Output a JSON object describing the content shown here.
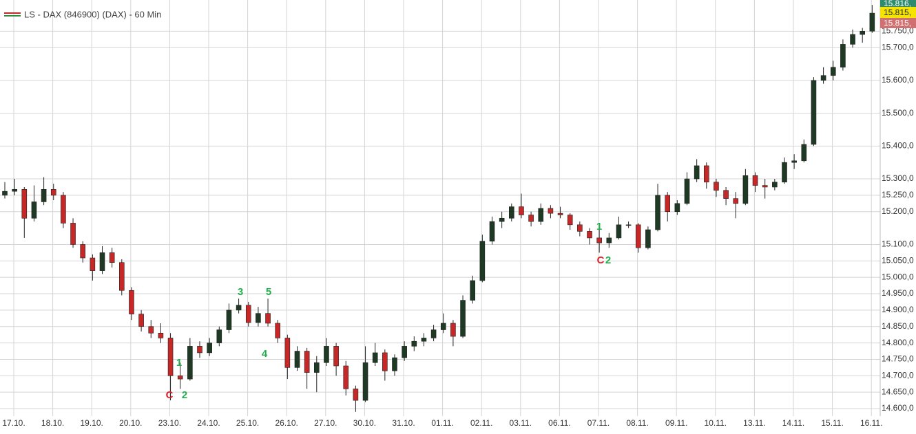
{
  "chart_data": {
    "type": "candlestick",
    "title": "LS - DAX (846900) (DAX) - 60 Min",
    "up_color": "#1e3a24",
    "down_color": "#c62828",
    "grid": true,
    "ylim": [
      14577,
      15845
    ],
    "yticks": [
      {
        "value": 15750,
        "label": "15.750,0"
      },
      {
        "value": 15700,
        "label": "15.700,0"
      },
      {
        "value": 15600,
        "label": "15.600,0"
      },
      {
        "value": 15500,
        "label": "15.500,0"
      },
      {
        "value": 15400,
        "label": "15.400,0"
      },
      {
        "value": 15300,
        "label": "15.300,0"
      },
      {
        "value": 15250,
        "label": "15.250,0"
      },
      {
        "value": 15200,
        "label": "15.200,0"
      },
      {
        "value": 15100,
        "label": "15.100,0"
      },
      {
        "value": 15050,
        "label": "15.050,0"
      },
      {
        "value": 15000,
        "label": "15.000,0"
      },
      {
        "value": 14950,
        "label": "14.950,0"
      },
      {
        "value": 14900,
        "label": "14.900,0"
      },
      {
        "value": 14850,
        "label": "14.850,0"
      },
      {
        "value": 14800,
        "label": "14.800,0"
      },
      {
        "value": 14750,
        "label": "14.750,0"
      },
      {
        "value": 14700,
        "label": "14.700,0"
      },
      {
        "value": 14650,
        "label": "14.650,0"
      },
      {
        "value": 14600,
        "label": "14.600,0"
      }
    ],
    "categories": [
      "17.10.",
      "18.10.",
      "19.10.",
      "20.10.",
      "23.10.",
      "24.10.",
      "25.10.",
      "26.10.",
      "27.10.",
      "30.10.",
      "31.10.",
      "01.11.",
      "02.11.",
      "03.11.",
      "06.11.",
      "07.11.",
      "08.11.",
      "09.11.",
      "10.11.",
      "13.11.",
      "14.11.",
      "15.11.",
      "16.11."
    ],
    "price_labels": [
      {
        "text": "15.816,",
        "color": "#2e8b6e"
      },
      {
        "text": "15.815,",
        "color": "#f5e400"
      },
      {
        "text": "15.815,",
        "color": "#d07070"
      }
    ],
    "annotations": [
      {
        "text": "1",
        "color": "#22b04a"
      },
      {
        "text": "2",
        "color": "#22b04a"
      },
      {
        "text": "C",
        "color": "#e0202a"
      },
      {
        "text": "3",
        "color": "#22b04a"
      },
      {
        "text": "4",
        "color": "#22b04a"
      },
      {
        "text": "5",
        "color": "#22b04a"
      },
      {
        "text": "1",
        "color": "#22b04a"
      },
      {
        "text": "C",
        "color": "#e0202a"
      },
      {
        "text": "2",
        "color": "#22b04a"
      }
    ],
    "candles": [
      [
        15250,
        15290,
        15240,
        15262
      ],
      [
        15262,
        15300,
        15250,
        15268
      ],
      [
        15268,
        15275,
        15120,
        15180
      ],
      [
        15180,
        15280,
        15170,
        15230
      ],
      [
        15230,
        15305,
        15220,
        15268
      ],
      [
        15268,
        15285,
        15235,
        15250
      ],
      [
        15250,
        15260,
        15150,
        15165
      ],
      [
        15165,
        15180,
        15090,
        15100
      ],
      [
        15100,
        15110,
        15045,
        15059
      ],
      [
        15059,
        15070,
        14990,
        15020
      ],
      [
        15020,
        15095,
        15010,
        15075
      ],
      [
        15075,
        15090,
        15030,
        15045
      ],
      [
        15045,
        15055,
        14945,
        14960
      ],
      [
        14960,
        14970,
        14870,
        14888
      ],
      [
        14888,
        14900,
        14835,
        14850
      ],
      [
        14850,
        14870,
        14815,
        14830
      ],
      [
        14830,
        14860,
        14800,
        14815
      ],
      [
        14815,
        14830,
        14625,
        14700
      ],
      [
        14700,
        14740,
        14660,
        14690
      ],
      [
        14690,
        14815,
        14685,
        14790
      ],
      [
        14790,
        14805,
        14755,
        14770
      ],
      [
        14770,
        14815,
        14760,
        14800
      ],
      [
        14800,
        14850,
        14790,
        14840
      ],
      [
        14840,
        14920,
        14830,
        14900
      ],
      [
        14900,
        14935,
        14890,
        14915
      ],
      [
        14915,
        14925,
        14850,
        14862
      ],
      [
        14862,
        14910,
        14850,
        14890
      ],
      [
        14890,
        14935,
        14850,
        14860
      ],
      [
        14860,
        14870,
        14800,
        14815
      ],
      [
        14815,
        14825,
        14690,
        14725
      ],
      [
        14725,
        14790,
        14715,
        14775
      ],
      [
        14775,
        14785,
        14660,
        14710
      ],
      [
        14710,
        14760,
        14650,
        14740
      ],
      [
        14740,
        14815,
        14730,
        14790
      ],
      [
        14790,
        14800,
        14700,
        14730
      ],
      [
        14730,
        14745,
        14640,
        14660
      ],
      [
        14660,
        14670,
        14590,
        14625
      ],
      [
        14625,
        14790,
        14620,
        14740
      ],
      [
        14740,
        14800,
        14730,
        14770
      ],
      [
        14770,
        14780,
        14685,
        14715
      ],
      [
        14715,
        14765,
        14700,
        14755
      ],
      [
        14755,
        14805,
        14745,
        14790
      ],
      [
        14790,
        14820,
        14775,
        14805
      ],
      [
        14805,
        14830,
        14790,
        14815
      ],
      [
        14815,
        14855,
        14805,
        14840
      ],
      [
        14840,
        14890,
        14830,
        14860
      ],
      [
        14860,
        14870,
        14790,
        14820
      ],
      [
        14820,
        14945,
        14815,
        14930
      ],
      [
        14930,
        15005,
        14920,
        14990
      ],
      [
        14990,
        15130,
        14985,
        15110
      ],
      [
        15110,
        15185,
        15100,
        15170
      ],
      [
        15170,
        15200,
        15150,
        15180
      ],
      [
        15180,
        15225,
        15170,
        15215
      ],
      [
        15215,
        15255,
        15180,
        15190
      ],
      [
        15190,
        15200,
        15155,
        15170
      ],
      [
        15170,
        15225,
        15160,
        15210
      ],
      [
        15210,
        15220,
        15180,
        15195
      ],
      [
        15195,
        15215,
        15180,
        15190
      ],
      [
        15190,
        15195,
        15145,
        15160
      ],
      [
        15160,
        15170,
        15125,
        15140
      ],
      [
        15140,
        15150,
        15100,
        15120
      ],
      [
        15120,
        15150,
        15075,
        15105
      ],
      [
        15105,
        15135,
        15090,
        15120
      ],
      [
        15120,
        15185,
        15115,
        15160
      ],
      [
        15160,
        15170,
        15150,
        15160
      ],
      [
        15160,
        15165,
        15075,
        15090
      ],
      [
        15090,
        15155,
        15085,
        15145
      ],
      [
        15145,
        15285,
        15140,
        15250
      ],
      [
        15250,
        15260,
        15170,
        15200
      ],
      [
        15200,
        15235,
        15190,
        15225
      ],
      [
        15225,
        15320,
        15220,
        15300
      ],
      [
        15300,
        15360,
        15290,
        15340
      ],
      [
        15340,
        15350,
        15270,
        15290
      ],
      [
        15290,
        15300,
        15245,
        15265
      ],
      [
        15265,
        15275,
        15220,
        15240
      ],
      [
        15240,
        15260,
        15180,
        15225
      ],
      [
        15225,
        15330,
        15220,
        15310
      ],
      [
        15310,
        15320,
        15260,
        15280
      ],
      [
        15280,
        15300,
        15240,
        15275
      ],
      [
        15275,
        15300,
        15265,
        15290
      ],
      [
        15290,
        15365,
        15285,
        15350
      ],
      [
        15350,
        15375,
        15330,
        15355
      ],
      [
        15355,
        15420,
        15350,
        15405
      ],
      [
        15405,
        15610,
        15400,
        15600
      ],
      [
        15600,
        15640,
        15590,
        15615
      ],
      [
        15615,
        15660,
        15600,
        15640
      ],
      [
        15640,
        15725,
        15630,
        15710
      ],
      [
        15710,
        15755,
        15700,
        15740
      ],
      [
        15740,
        15760,
        15715,
        15750
      ],
      [
        15750,
        15830,
        15745,
        15805
      ]
    ]
  }
}
